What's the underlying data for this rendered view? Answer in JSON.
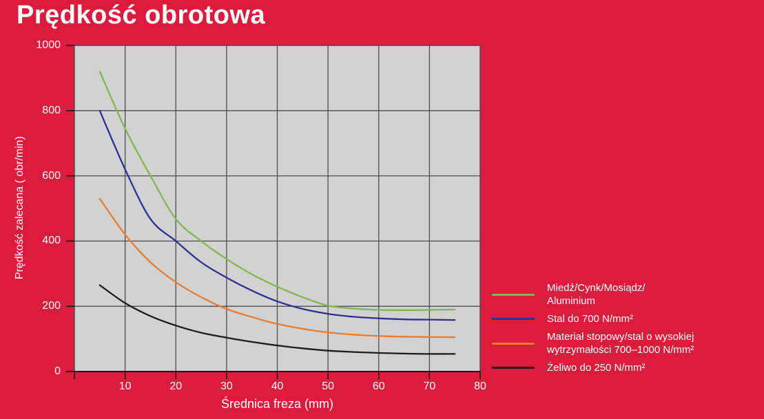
{
  "title": "Prędkość obrotowa",
  "colors": {
    "background": "#db1c3c",
    "plot_background": "#d2d2d3",
    "grid": "#4d4d50",
    "axis": "#1a1a1a",
    "text": "#ffffff"
  },
  "chart_data": {
    "type": "line",
    "title": "Prędkość obrotowa",
    "xlabel": "Średnica freza (mm)",
    "ylabel": "Prędkość zalecana ( obr/min)",
    "xlim": [
      0,
      80
    ],
    "ylim": [
      0,
      1000
    ],
    "x_tick_step": 10,
    "y_tick_step": 200,
    "x_tick_labels": [
      "10",
      "20",
      "30",
      "40",
      "50",
      "60",
      "70",
      "80"
    ],
    "y_tick_labels": [
      "0",
      "200",
      "400",
      "600",
      "800",
      "1000"
    ],
    "grid": true,
    "legend_position": "right",
    "x": [
      5,
      10,
      15,
      20,
      25,
      30,
      35,
      40,
      45,
      50,
      55,
      60,
      65,
      70,
      75
    ],
    "series": [
      {
        "name": "Miedź/Cynk/Mosiądz/Aluminium",
        "legend_lines": [
          "Miedź/Cynk/Mosiądz/",
          "Aluminium"
        ],
        "color": "#82b750",
        "values": [
          920,
          745,
          600,
          468,
          400,
          345,
          298,
          260,
          228,
          202,
          193,
          189,
          188,
          189,
          190
        ]
      },
      {
        "name": "Stal do 700 N/mm²",
        "legend_lines": [
          "Stal do 700 N/mm²"
        ],
        "color": "#2c3190",
        "values": [
          800,
          620,
          468,
          400,
          335,
          288,
          248,
          215,
          192,
          177,
          168,
          163,
          160,
          159,
          158
        ]
      },
      {
        "name": "Materiał stopowy/stal o wysokiej wytrzymałości 700–1000 N/mm²",
        "legend_lines": [
          "Materiał stopowy/stal o wysokiej",
          "wytrzymałości 700–1000 N/mm²"
        ],
        "color": "#e87c2f",
        "values": [
          530,
          420,
          335,
          274,
          228,
          192,
          167,
          146,
          131,
          120,
          113,
          109,
          107,
          106,
          105
        ]
      },
      {
        "name": "Żeliwo do 250 N/mm²",
        "legend_lines": [
          "Żeliwo do 250 N/mm²"
        ],
        "color": "#1c1c1c",
        "values": [
          265,
          210,
          170,
          141,
          119,
          104,
          91,
          80,
          71,
          64,
          60,
          57,
          55,
          54,
          54
        ]
      }
    ]
  }
}
